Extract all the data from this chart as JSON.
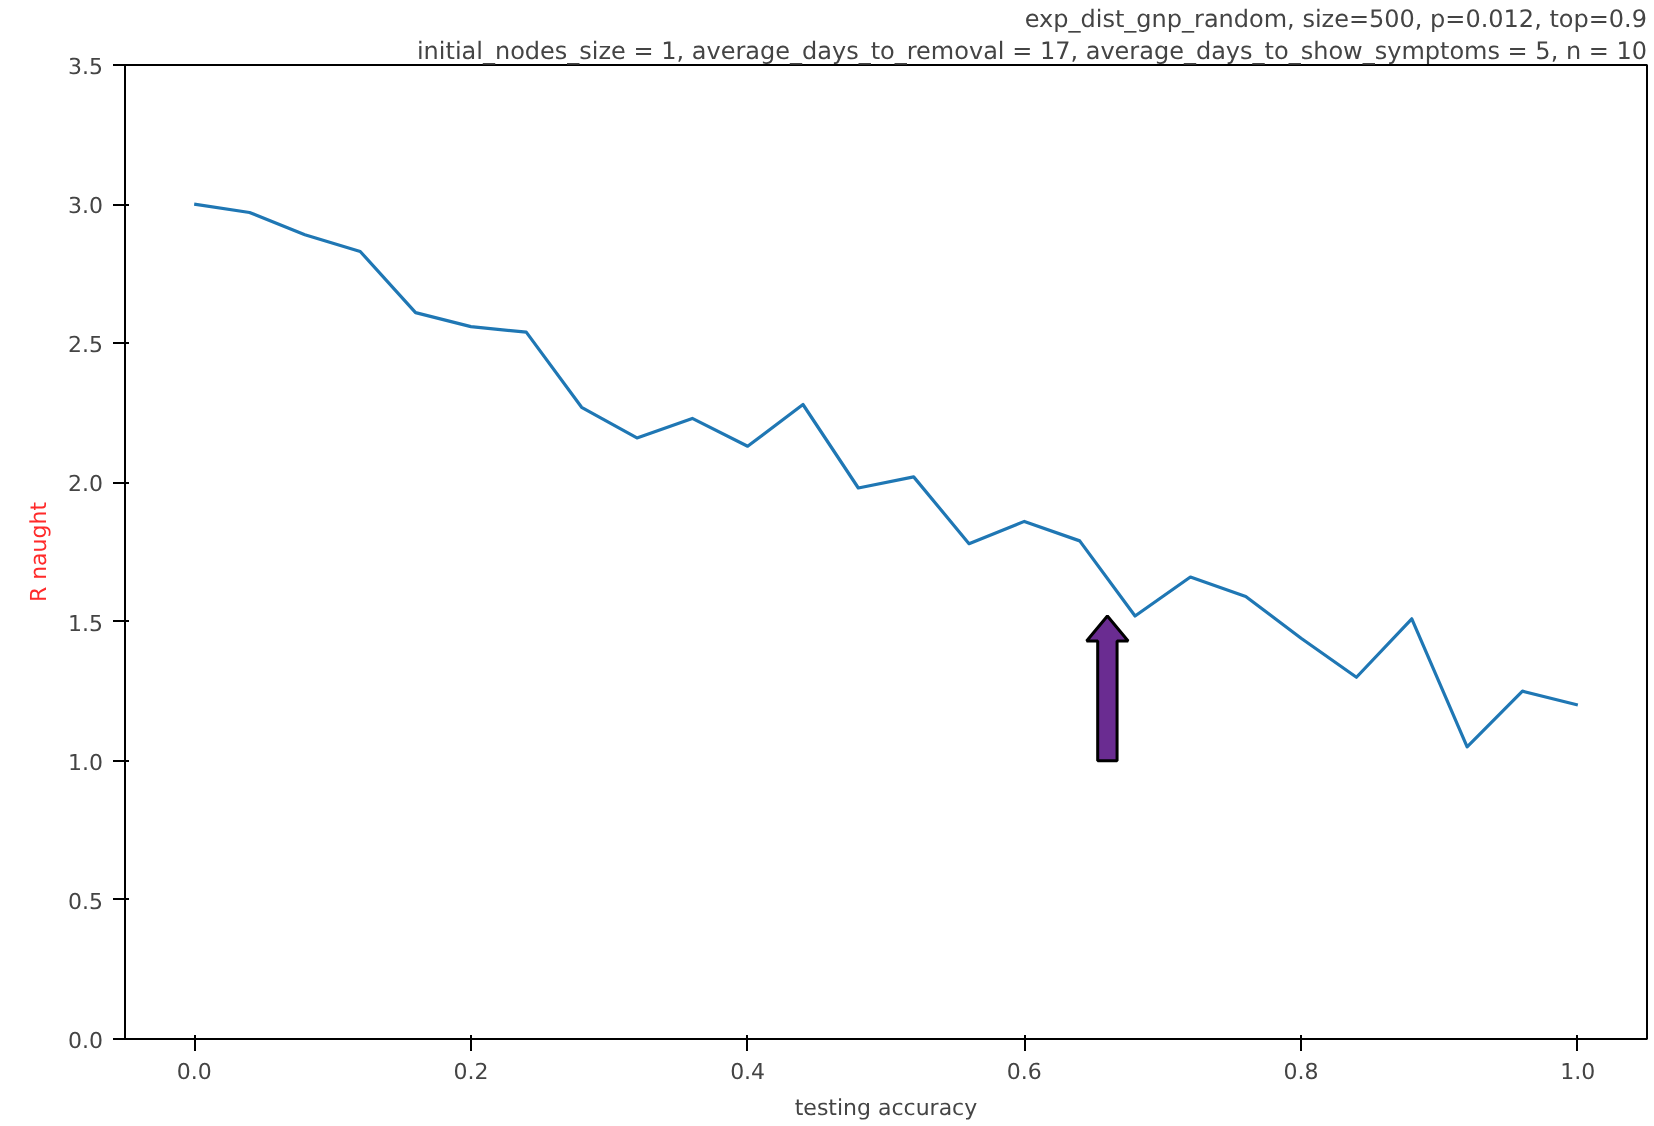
{
  "chart_data": {
    "type": "line",
    "title": "exp_dist_gnp_random, size=500, p=0.012, top=0.9",
    "subtitle": "initial_nodes_size = 1, average_days_to_removal = 17, average_days_to_show_symptoms = 5, n = 10",
    "xlabel": "testing accuracy",
    "ylabel": "R naught",
    "x": [
      0.0,
      0.04,
      0.08,
      0.12,
      0.16,
      0.2,
      0.24,
      0.28,
      0.32,
      0.36,
      0.4,
      0.44,
      0.48,
      0.52,
      0.56,
      0.6,
      0.64,
      0.68,
      0.72,
      0.76,
      0.8,
      0.84,
      0.88,
      0.92,
      0.96,
      1.0
    ],
    "series": [
      {
        "color": "#1f77b4",
        "values": [
          3.0,
          2.97,
          2.89,
          2.83,
          2.61,
          2.56,
          2.54,
          2.27,
          2.16,
          2.23,
          2.13,
          2.28,
          1.98,
          2.02,
          1.78,
          1.86,
          1.79,
          1.52,
          1.66,
          1.59,
          1.44,
          1.3,
          1.51,
          1.05,
          1.25,
          1.2
        ]
      }
    ],
    "xlim": [
      -0.05,
      1.05
    ],
    "ylim": [
      0,
      3.5
    ],
    "xticks": [
      {
        "value": 0,
        "label": "0.0"
      },
      {
        "value": 0.2,
        "label": "0.2"
      },
      {
        "value": 0.4,
        "label": "0.4"
      },
      {
        "value": 0.6,
        "label": "0.6"
      },
      {
        "value": 0.8,
        "label": "0.8"
      },
      {
        "value": 1,
        "label": "1.0"
      }
    ],
    "yticks": [
      {
        "value": 0,
        "label": "0.0"
      },
      {
        "value": 0.5,
        "label": "0.5"
      },
      {
        "value": 1,
        "label": "1.0"
      },
      {
        "value": 1.5,
        "label": "1.5"
      },
      {
        "value": 2,
        "label": "2.0"
      },
      {
        "value": 2.5,
        "label": "2.5"
      },
      {
        "value": 3,
        "label": "3.0"
      },
      {
        "value": 3.5,
        "label": "3.5"
      }
    ],
    "grid": false,
    "marker": "none",
    "line_style": "solid"
  }
}
